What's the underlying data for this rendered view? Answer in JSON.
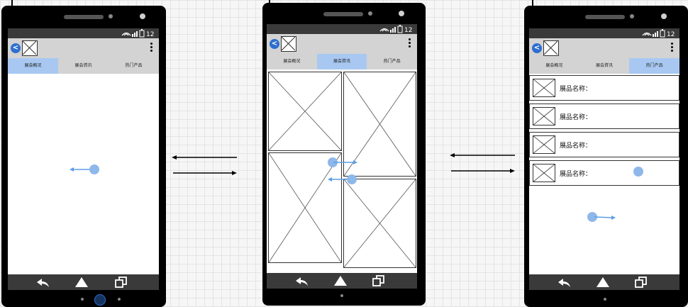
{
  "screens": [
    {
      "id": "overview",
      "tabs": [
        "展会概况",
        "展会資讯",
        "热门产品"
      ],
      "active_tab": 0
    },
    {
      "id": "news",
      "tabs": [
        "展会概况",
        "展会資讯",
        "热门产品"
      ],
      "active_tab": 1
    },
    {
      "id": "products",
      "tabs": [
        "展会概况",
        "展会資讯",
        "热门产品"
      ],
      "active_tab": 2,
      "list_items": [
        "展品名称：",
        "展品名称：",
        "展品名称：",
        "展品名称："
      ]
    }
  ],
  "icons": {
    "back": "back-arrow-icon",
    "menu": "more-vertical-icon",
    "nav": [
      "back-nav-icon",
      "home-triangle-icon",
      "recent-apps-icon"
    ]
  },
  "colors": {
    "accent": "#a8c8f2",
    "gesture": "#8fb8ea",
    "phone_body": "#000000",
    "bar": "#3a3a3a",
    "appbar": "#d3d3d3"
  }
}
